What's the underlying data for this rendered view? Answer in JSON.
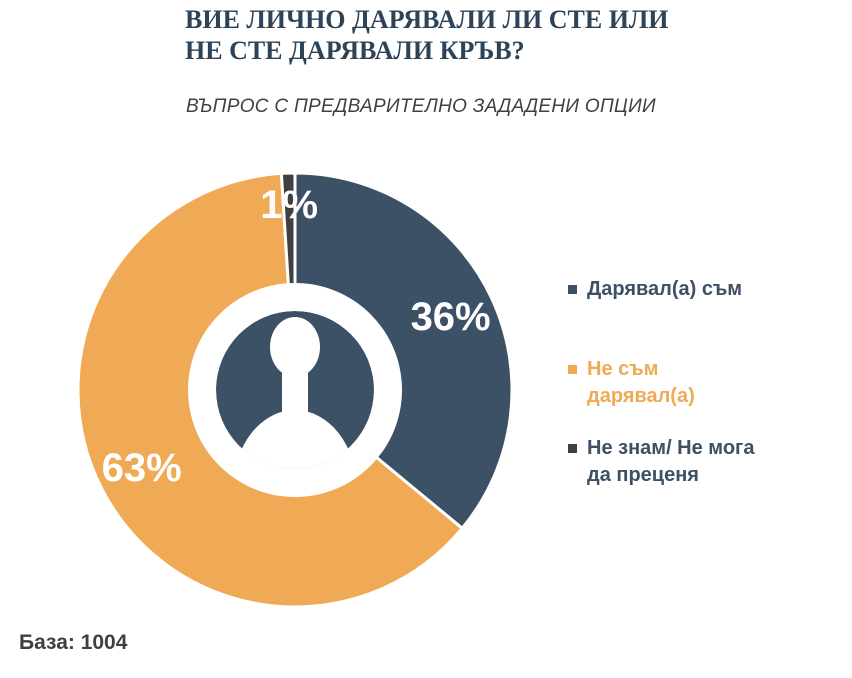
{
  "header": {
    "title": "ВИЕ ЛИЧНО ДАРЯВАЛИ ЛИ СТЕ ИЛИ НЕ СТЕ ДАРЯВАЛИ КРЪВ?",
    "subtitle": "ВЪПРОС С ПРЕДВАРИТЕЛНО ЗАДАДЕНИ ОПЦИИ"
  },
  "chart_data": {
    "type": "pie",
    "subtype": "donut",
    "title": "ВИЕ ЛИЧНО ДАРЯВАЛИ ЛИ СТЕ ИЛИ НЕ СТЕ ДАРЯВАЛИ КРЪВ?",
    "series": [
      {
        "label": "Дарявал(а) съм",
        "value": 36,
        "display": "36%",
        "color": "#3c5166"
      },
      {
        "label": "Не съм дарявал(а)",
        "value": 63,
        "display": "63%",
        "color": "#f0a955"
      },
      {
        "label": "Не знам/ Не мога да преценя",
        "value": 1,
        "display": "1%",
        "color": "#404040"
      }
    ],
    "start_angle_deg": 0,
    "direction": "clockwise",
    "legend_position": "right",
    "data_label_color": "#ffffff",
    "center_icon": "person-silhouette",
    "center_icon_color": "#3c5166"
  },
  "legend": {
    "items": [
      {
        "label": "Дарявал(а) съм",
        "wrapped": "Дарявал(а) съм",
        "color": "#3c5166",
        "text_color": "#3c5166"
      },
      {
        "label": "Не съм дарявал(а)",
        "wrapped": "Не съм\nдарявал(а)",
        "color": "#f0a955",
        "text_color": "#f0a955"
      },
      {
        "label": "Не знам/ Не мога да преценя",
        "wrapped": "Не знам/ Не мога\nда преценя",
        "color": "#404040",
        "text_color": "#3c5166"
      }
    ]
  },
  "footer": {
    "base_label": "База: 1004"
  }
}
